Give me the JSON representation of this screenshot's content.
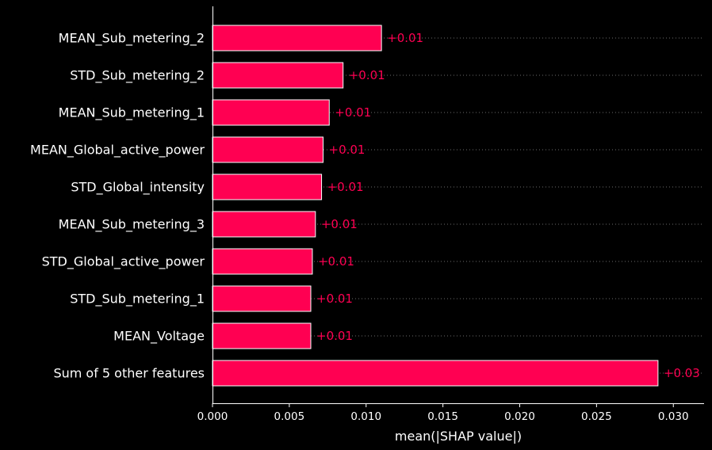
{
  "colors": {
    "background": "#000000",
    "bar": "#ff0052",
    "bar_edge": "#ffffff",
    "text": "#ffffff",
    "value_label": "#ff0052",
    "guide_line": "#9a9a9a"
  },
  "chart_data": {
    "type": "bar",
    "orientation": "horizontal",
    "title": "",
    "xlabel": "mean(|SHAP value|)",
    "ylabel": "",
    "xlim": [
      0,
      0.032
    ],
    "x_ticks": [
      0,
      0.005,
      0.01,
      0.015,
      0.02,
      0.025,
      0.03
    ],
    "x_tick_labels": [
      "0.000",
      "0.005",
      "0.010",
      "0.015",
      "0.020",
      "0.025",
      "0.030"
    ],
    "grid": false,
    "legend": "none",
    "categories": [
      "MEAN_Sub_metering_2",
      "STD_Sub_metering_2",
      "MEAN_Sub_metering_1",
      "MEAN_Global_active_power",
      "STD_Global_intensity",
      "MEAN_Sub_metering_3",
      "STD_Global_active_power",
      "STD_Sub_metering_1",
      "MEAN_Voltage",
      "Sum of 5 other features"
    ],
    "values": [
      0.011,
      0.0085,
      0.0076,
      0.0072,
      0.0071,
      0.0067,
      0.0065,
      0.0064,
      0.0064,
      0.029
    ],
    "value_labels": [
      "+0.01",
      "+0.01",
      "+0.01",
      "+0.01",
      "+0.01",
      "+0.01",
      "+0.01",
      "+0.01",
      "+0.01",
      "+0.03"
    ]
  }
}
